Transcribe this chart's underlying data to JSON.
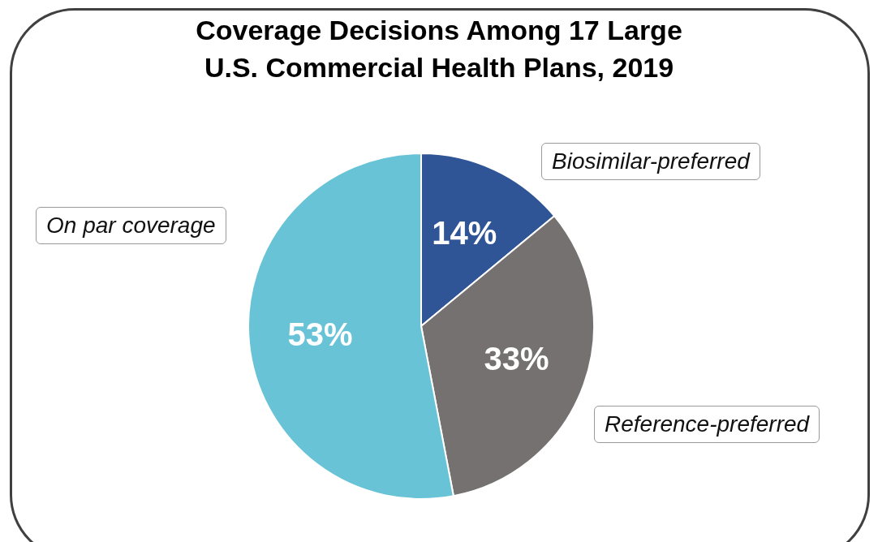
{
  "chart_data": {
    "type": "pie",
    "title": "Coverage Decisions Among 17 Large\nU.S. Commercial Health Plans, 2019",
    "categories": [
      "Biosimilar-preferred",
      "Reference-preferred",
      "On par coverage"
    ],
    "values": [
      14,
      33,
      53
    ],
    "colors": [
      "#2f5597",
      "#767171",
      "#69c3d7"
    ],
    "value_labels": [
      "14%",
      "33%",
      "53%"
    ],
    "legend": false
  }
}
